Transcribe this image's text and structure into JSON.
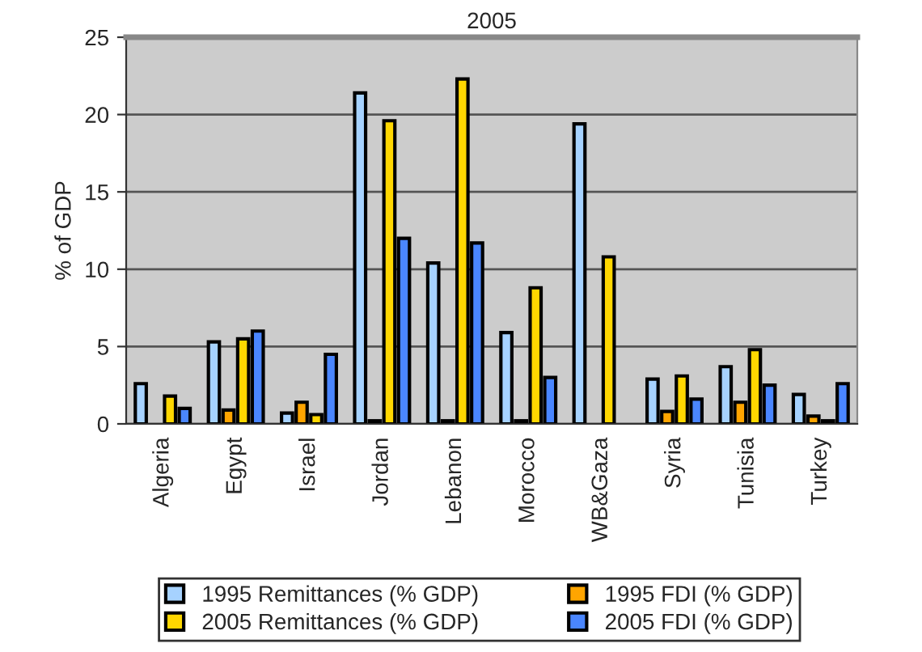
{
  "chart_data": {
    "type": "bar",
    "title": "2005",
    "ylabel": "% of GDP",
    "categories": [
      "Algeria",
      "Egypt",
      "Israel",
      "Jordan",
      "Lebanon",
      "Morocco",
      "WB&Gaza",
      "Syria",
      "Tunisia",
      "Turkey"
    ],
    "series": [
      {
        "name": "1995 Remittances (% GDP)",
        "color": "#a6d2ff",
        "values": [
          2.6,
          5.3,
          0.7,
          21.4,
          10.4,
          5.9,
          19.4,
          2.9,
          3.7,
          1.9
        ]
      },
      {
        "name": "1995 FDI (% GDP)",
        "color": "#ffa500",
        "values": [
          null,
          0.9,
          1.4,
          0.2,
          0.2,
          0.2,
          null,
          0.8,
          1.4,
          0.5
        ]
      },
      {
        "name": "2005 Remittances (% GDP)",
        "color": "#ffd700",
        "values": [
          1.8,
          5.5,
          0.6,
          19.6,
          22.3,
          8.8,
          10.8,
          3.1,
          4.8,
          0.2
        ]
      },
      {
        "name": "2005 FDI (% GDP)",
        "color": "#4a86ff",
        "values": [
          1.0,
          6.0,
          4.5,
          12.0,
          11.7,
          3.0,
          null,
          1.6,
          2.5,
          2.6
        ]
      }
    ],
    "ylim": [
      0,
      25
    ],
    "yticks": [
      0,
      5,
      10,
      15,
      20,
      25
    ],
    "grid": "y",
    "legend": "bottom"
  }
}
